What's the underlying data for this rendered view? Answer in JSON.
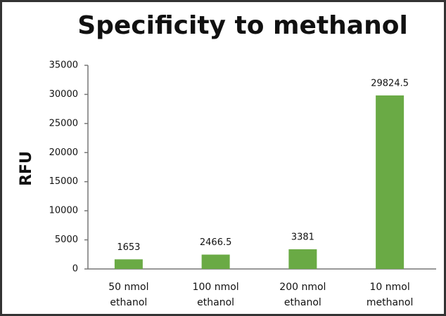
{
  "chart_data": {
    "type": "bar",
    "title": "Specificity to methanol",
    "ylabel": "RFU",
    "categories": [
      "50 nmol\nethanol",
      "100 nmol\nethanol",
      "200 nmol\nethanol",
      "10 nmol\nmethanol"
    ],
    "values": [
      1653,
      2466.5,
      3381,
      29824.5
    ],
    "color": "#6aaa45",
    "ylim": [
      0,
      35000
    ],
    "yticks": [
      0,
      5000,
      10000,
      15000,
      20000,
      25000,
      30000,
      35000
    ]
  }
}
